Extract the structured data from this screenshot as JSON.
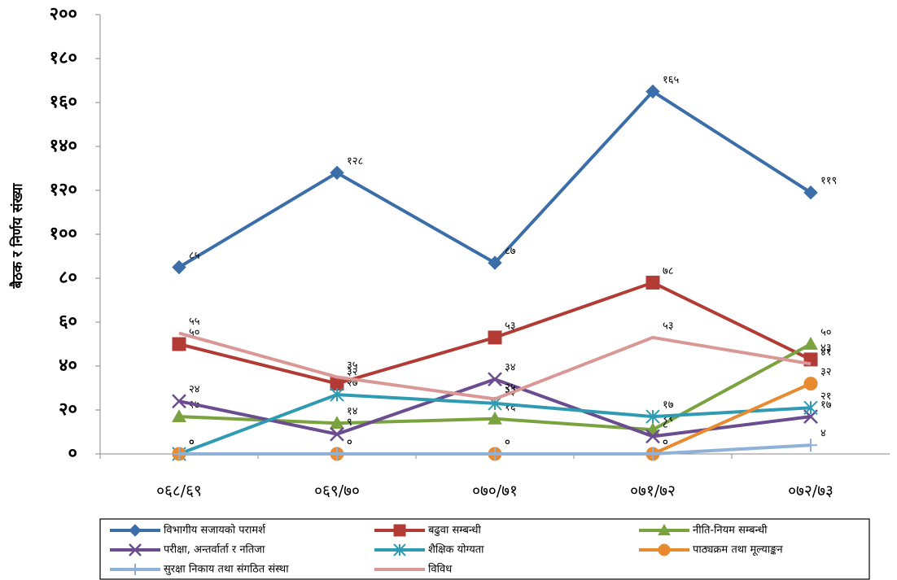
{
  "chart_data": {
    "type": "line",
    "y_label": "बैठक र निर्णय संख्या",
    "categories": [
      "०६८/६९",
      "०६९/७०",
      "०७०/७१",
      "०७१/७२",
      "०७२/७३"
    ],
    "ylim": [
      0,
      200
    ],
    "yticks": [
      {
        "value": 0,
        "label": "०"
      },
      {
        "value": 20,
        "label": "२०"
      },
      {
        "value": 40,
        "label": "४०"
      },
      {
        "value": 60,
        "label": "६०"
      },
      {
        "value": 80,
        "label": "८०"
      },
      {
        "value": 100,
        "label": "१००"
      },
      {
        "value": 120,
        "label": "१२०"
      },
      {
        "value": 140,
        "label": "१४०"
      },
      {
        "value": 160,
        "label": "१६०"
      },
      {
        "value": 180,
        "label": "१८०"
      },
      {
        "value": 200,
        "label": "२००"
      }
    ],
    "legend": "bottom",
    "series": [
      {
        "name": "विभागीय सजायको परामर्श",
        "color": "#3b6ea8",
        "marker": "diamond",
        "values": [
          85,
          128,
          87,
          165,
          119
        ],
        "value_labels": [
          "८५",
          "१२८",
          "८७",
          "१६५",
          "११९"
        ]
      },
      {
        "name": "बढुवा सम्बन्धी",
        "color": "#b23c35",
        "marker": "square",
        "values": [
          50,
          32,
          53,
          78,
          43
        ],
        "value_labels": [
          "५०",
          "३२",
          "५३",
          "७८",
          "४३"
        ]
      },
      {
        "name": "नीति-नियम सम्बन्धी",
        "color": "#7aa23e",
        "marker": "triangle",
        "values": [
          17,
          14,
          16,
          11,
          50
        ],
        "value_labels": [
          "१७",
          "१४",
          "१६",
          "११",
          "५०"
        ]
      },
      {
        "name": "परीक्षा, अन्तर्वार्ता र नतिजा",
        "color": "#6b4c8f",
        "marker": "x",
        "values": [
          24,
          9,
          34,
          8,
          17
        ],
        "value_labels": [
          "२४",
          "९",
          "३४",
          "८",
          "१७"
        ]
      },
      {
        "name": "शैक्षिक योग्यता",
        "color": "#2f9bb2",
        "marker": "star",
        "values": [
          0,
          27,
          23,
          17,
          21
        ],
        "value_labels": [
          "०",
          "२७",
          "२३",
          "१७",
          "२१"
        ]
      },
      {
        "name": "पाठ्यक्रम तथा मूल्याङ्कन",
        "color": "#e88b30",
        "marker": "circle",
        "values": [
          0,
          0,
          0,
          0,
          32
        ],
        "value_labels": [
          "०",
          "०",
          "०",
          "०",
          "३२"
        ]
      },
      {
        "name": "सुरक्षा निकाय तथा संगठित संस्था",
        "color": "#8fb1d8",
        "marker": "plus",
        "values": [
          0,
          0,
          0,
          0,
          4
        ],
        "value_labels": [
          "०",
          "०",
          "०",
          "०",
          "४"
        ]
      },
      {
        "name": "विविध",
        "color": "#d99795",
        "marker": "none",
        "values": [
          55,
          35,
          25,
          53,
          41
        ],
        "value_labels": [
          "५५",
          "३५",
          "२५",
          "५३",
          "४१"
        ]
      }
    ]
  }
}
